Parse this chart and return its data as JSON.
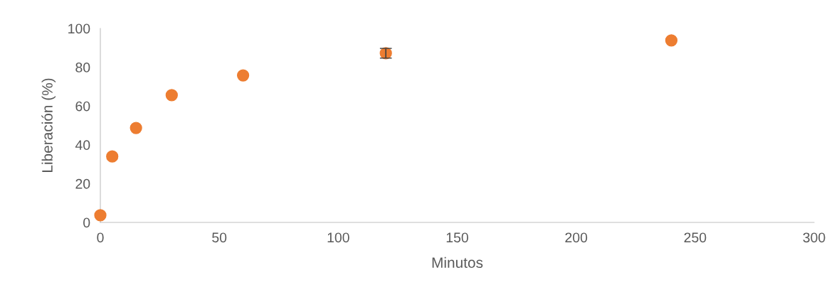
{
  "chart_data": {
    "type": "scatter",
    "xlabel": "Minutos",
    "ylabel": "Liberación (%)",
    "x": [
      0,
      5,
      15,
      30,
      60,
      120,
      240
    ],
    "values": [
      3.7,
      34,
      48.7,
      65.6,
      75.8,
      87.2,
      93.8
    ],
    "errors": [
      null,
      null,
      null,
      null,
      null,
      2.5,
      null
    ],
    "color": "#ed7d31",
    "marker": "circle",
    "xlim": [
      0,
      300
    ],
    "xticks": [
      0,
      50,
      100,
      150,
      200,
      250,
      300
    ],
    "ylim": [
      0,
      100
    ],
    "yticks": [
      0,
      20,
      40,
      60,
      80,
      100
    ],
    "grid": false
  }
}
